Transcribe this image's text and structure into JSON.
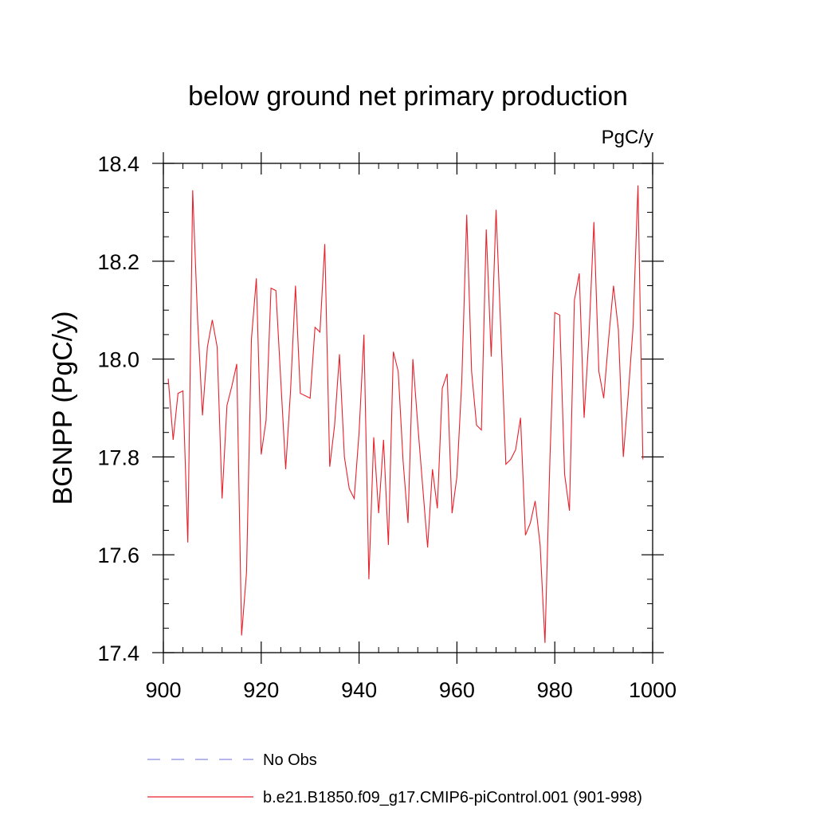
{
  "chart_data": {
    "type": "line",
    "title": "below ground net primary production",
    "units_label": "PgC/y",
    "ylabel": "BGNPP  (PgC/y)",
    "xlabel": "",
    "xlim": [
      900,
      1000
    ],
    "ylim": [
      17.4,
      18.4
    ],
    "x_ticks": [
      900,
      920,
      940,
      960,
      980,
      1000
    ],
    "x_tick_labels": [
      "900",
      "920",
      "940",
      "960",
      "980",
      "1000"
    ],
    "y_ticks": [
      17.4,
      17.6,
      17.8,
      18.0,
      18.2,
      18.4
    ],
    "y_tick_labels": [
      "17.4",
      "17.6",
      "17.8",
      "18.0",
      "18.2",
      "18.4"
    ],
    "grid": false,
    "legend_position": "bottom",
    "legend": [
      {
        "name": "No Obs",
        "style": "dashed",
        "color": "#8a8ae0"
      },
      {
        "name": "b.e21.B1850.f09_g17.CMIP6-piControl.001 (901-998)",
        "style": "solid",
        "color": "#e8202a"
      }
    ],
    "series": [
      {
        "name": "b.e21.B1850.f09_g17.CMIP6-piControl.001 (901-998)",
        "color": "#e8202a",
        "x": [
          901,
          902,
          903,
          904,
          905,
          906,
          907,
          908,
          909,
          910,
          911,
          912,
          913,
          914,
          915,
          916,
          917,
          918,
          919,
          920,
          921,
          922,
          923,
          924,
          925,
          926,
          927,
          928,
          929,
          930,
          931,
          932,
          933,
          934,
          935,
          936,
          937,
          938,
          939,
          940,
          941,
          942,
          943,
          944,
          945,
          946,
          947,
          948,
          949,
          950,
          951,
          952,
          953,
          954,
          955,
          956,
          957,
          958,
          959,
          960,
          961,
          962,
          963,
          964,
          965,
          966,
          967,
          968,
          969,
          970,
          971,
          972,
          973,
          974,
          975,
          976,
          977,
          978,
          979,
          980,
          981,
          982,
          983,
          984,
          985,
          986,
          987,
          988,
          989,
          990,
          991,
          992,
          993,
          994,
          995,
          996,
          997,
          998
        ],
        "values": [
          17.96,
          17.835,
          17.93,
          17.935,
          17.625,
          18.345,
          18.08,
          17.885,
          18.025,
          18.08,
          18.025,
          17.715,
          17.905,
          17.945,
          17.99,
          17.435,
          17.565,
          18.04,
          18.165,
          17.805,
          17.875,
          18.145,
          18.14,
          17.955,
          17.775,
          17.935,
          18.15,
          17.93,
          17.925,
          17.92,
          18.065,
          18.055,
          18.235,
          17.78,
          17.865,
          18.01,
          17.8,
          17.735,
          17.715,
          17.85,
          18.05,
          17.55,
          17.84,
          17.685,
          17.835,
          17.62,
          18.015,
          17.975,
          17.79,
          17.665,
          18.0,
          17.865,
          17.74,
          17.615,
          17.775,
          17.695,
          17.94,
          17.97,
          17.685,
          17.76,
          17.955,
          18.295,
          17.975,
          17.865,
          17.855,
          18.265,
          18.005,
          18.305,
          18.05,
          17.785,
          17.795,
          17.815,
          17.88,
          17.64,
          17.665,
          17.71,
          17.62,
          17.42,
          17.795,
          18.095,
          18.09,
          17.765,
          17.69,
          18.12,
          18.175,
          17.88,
          18.05,
          18.28,
          17.975,
          17.92,
          18.04,
          18.15,
          18.06,
          17.8,
          17.925,
          18.065,
          18.355,
          17.795
        ]
      }
    ]
  }
}
